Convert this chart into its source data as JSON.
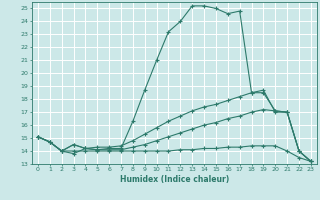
{
  "xlabel": "Humidex (Indice chaleur)",
  "bg_color": "#cce8e8",
  "line_color": "#2d7a6b",
  "grid_color": "#ffffff",
  "xlim": [
    -0.5,
    23.5
  ],
  "ylim": [
    13,
    25.5
  ],
  "yticks": [
    13,
    14,
    15,
    16,
    17,
    18,
    19,
    20,
    21,
    22,
    23,
    24,
    25
  ],
  "xticks": [
    0,
    1,
    2,
    3,
    4,
    5,
    6,
    7,
    8,
    9,
    10,
    11,
    12,
    13,
    14,
    15,
    16,
    17,
    18,
    19,
    20,
    21,
    22,
    23
  ],
  "series": [
    {
      "x": [
        0,
        1,
        2,
        3,
        4,
        5,
        6,
        7,
        8,
        9,
        10,
        11,
        12,
        13,
        14,
        15,
        16,
        17,
        18,
        19,
        20,
        21,
        22,
        23
      ],
      "y": [
        15.1,
        14.7,
        14.0,
        14.5,
        14.2,
        14.1,
        14.2,
        14.2,
        16.3,
        18.7,
        21.0,
        23.2,
        24.0,
        25.2,
        25.2,
        25.0,
        24.6,
        24.8,
        18.5,
        18.5,
        17.1,
        17.0,
        14.0,
        13.2
      ]
    },
    {
      "x": [
        0,
        1,
        2,
        3,
        4,
        5,
        6,
        7,
        8,
        9,
        10,
        11,
        12,
        13,
        14,
        15,
        16,
        17,
        18,
        19,
        20,
        21,
        22,
        23
      ],
      "y": [
        15.1,
        14.7,
        14.0,
        14.5,
        14.2,
        14.3,
        14.3,
        14.4,
        14.8,
        15.3,
        15.8,
        16.3,
        16.7,
        17.1,
        17.4,
        17.6,
        17.9,
        18.2,
        18.5,
        18.7,
        17.0,
        17.0,
        14.0,
        13.2
      ]
    },
    {
      "x": [
        0,
        1,
        2,
        3,
        4,
        5,
        6,
        7,
        8,
        9,
        10,
        11,
        12,
        13,
        14,
        15,
        16,
        17,
        18,
        19,
        20,
        21,
        22,
        23
      ],
      "y": [
        15.1,
        14.7,
        14.0,
        13.8,
        14.2,
        14.1,
        14.1,
        14.1,
        14.3,
        14.5,
        14.8,
        15.1,
        15.4,
        15.7,
        16.0,
        16.2,
        16.5,
        16.7,
        17.0,
        17.2,
        17.1,
        17.0,
        14.0,
        13.2
      ]
    },
    {
      "x": [
        0,
        1,
        2,
        3,
        4,
        5,
        6,
        7,
        8,
        9,
        10,
        11,
        12,
        13,
        14,
        15,
        16,
        17,
        18,
        19,
        20,
        21,
        22,
        23
      ],
      "y": [
        15.1,
        14.7,
        14.0,
        14.0,
        14.0,
        14.0,
        14.0,
        14.0,
        14.0,
        14.0,
        14.0,
        14.0,
        14.1,
        14.1,
        14.2,
        14.2,
        14.3,
        14.3,
        14.4,
        14.4,
        14.4,
        14.0,
        13.5,
        13.2
      ]
    }
  ]
}
